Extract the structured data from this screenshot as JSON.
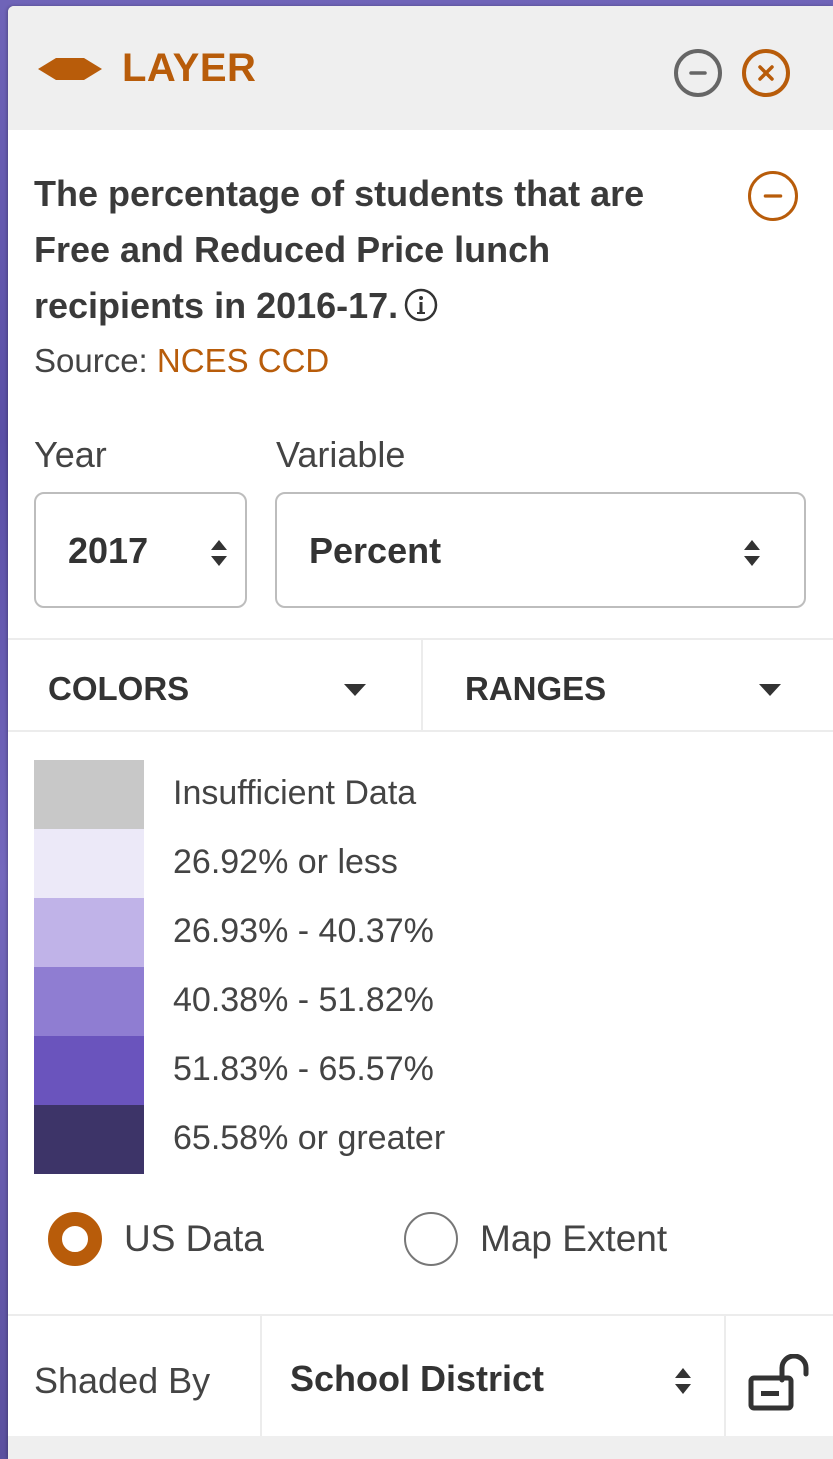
{
  "header": {
    "title": "LAYER",
    "icon": "layer-icon",
    "accent_color": "#b85c0a"
  },
  "description": {
    "text": "The percentage of students that are Free and Reduced Price lunch recipients in 2016-17.",
    "source_label": "Source:",
    "source_link": "NCES CCD"
  },
  "filters": {
    "year_label": "Year",
    "year_value": "2017",
    "variable_label": "Variable",
    "variable_value": "Percent"
  },
  "tabs": {
    "colors": "COLORS",
    "ranges": "RANGES"
  },
  "legend": [
    {
      "label": "Insufficient Data",
      "color": "#c8c8c8"
    },
    {
      "label": "26.92% or less",
      "color": "#ece9f8"
    },
    {
      "label": "26.93% - 40.37%",
      "color": "#c0b3e8"
    },
    {
      "label": "40.38% - 51.82%",
      "color": "#8f7dd2"
    },
    {
      "label": "51.83% - 65.57%",
      "color": "#6a54bd"
    },
    {
      "label": "65.58% or greater",
      "color": "#3d3468"
    }
  ],
  "scope": {
    "option1": "US Data",
    "option1_selected": true,
    "option2": "Map Extent",
    "option2_selected": false
  },
  "footer": {
    "shaded_by_label": "Shaded By",
    "shaded_by_value": "School District",
    "lock_icon": "unlocked-padlock-icon"
  }
}
